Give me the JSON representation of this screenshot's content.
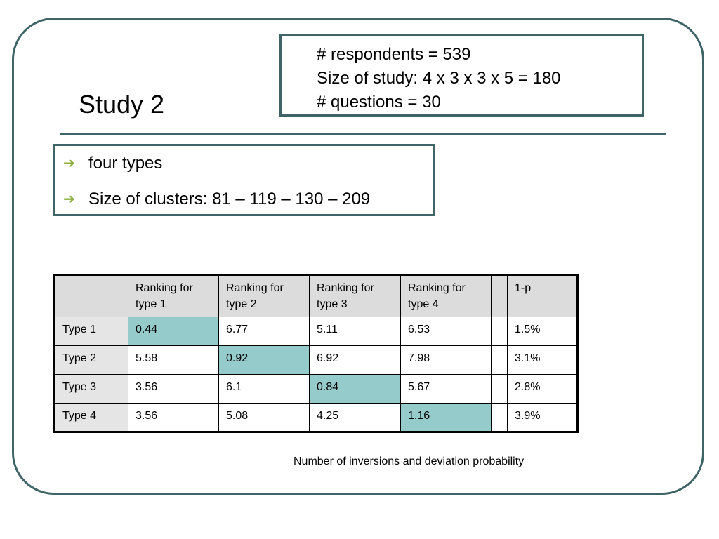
{
  "title": "Study 2",
  "info_box": {
    "lines": [
      "# respondents = 539",
      "Size of study: 4 x 3 x 3 x 5  = 180",
      "# questions = 30"
    ]
  },
  "bullets": {
    "items": [
      "four types",
      "Size of clusters: 81 – 119 – 130 – 209"
    ]
  },
  "table": {
    "headers": [
      "",
      "Ranking for type 1",
      "Ranking for type 2",
      "Ranking for type 3",
      "Ranking for type 4",
      "",
      "1-p"
    ],
    "rows": [
      [
        "Type 1",
        "0.44",
        "6.77",
        "5.11",
        "6.53",
        "",
        "1.5%"
      ],
      [
        "Type 2",
        "5.58",
        "0.92",
        "6.92",
        "7.98",
        "",
        "3.1%"
      ],
      [
        "Type 3",
        "3.56",
        "6.1",
        "0.84",
        "5.67",
        "",
        "2.8%"
      ],
      [
        "Type 4",
        "3.56",
        "5.08",
        "4.25",
        "1.16",
        "",
        "3.9%"
      ]
    ],
    "highlight_color": "#96cbcb"
  },
  "caption": "Number of inversions and deviation probability",
  "colors": {
    "frame": "#3f6468",
    "bullet_arrow": "#8cae3c",
    "header_fill": "#dcdcdc"
  }
}
